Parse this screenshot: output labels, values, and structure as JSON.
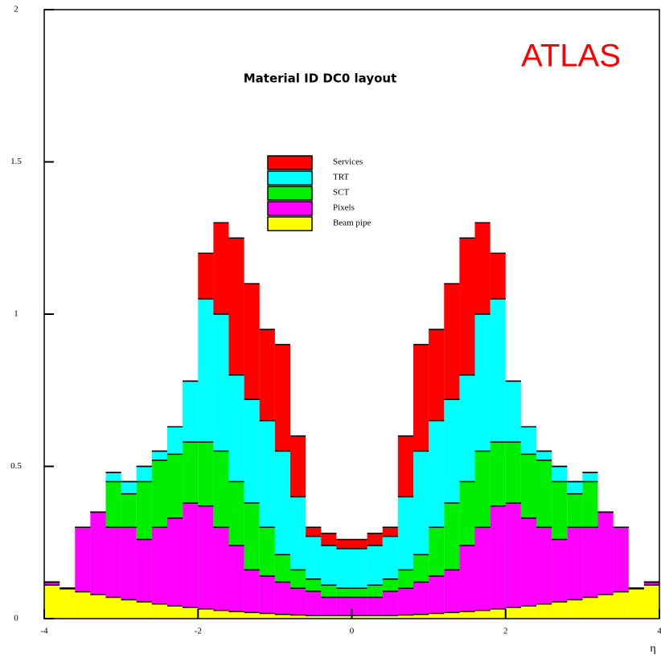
{
  "chart_data": {
    "type": "stacked_histogram",
    "title": "Material ID DC0 layout",
    "annotation": "ATLAS",
    "xlabel": "η",
    "bins": [
      -4,
      -3.8,
      -3.6,
      -3.4,
      -3.2,
      -3,
      -2.8,
      -2.6,
      -2.4,
      -2.2,
      -2,
      -1.8,
      -1.6,
      -1.4,
      -1.2,
      -1,
      -0.8,
      -0.6,
      -0.4,
      -0.2,
      0,
      0.2,
      0.4,
      0.6,
      0.8,
      1,
      1.2,
      1.4,
      1.6,
      1.8,
      2,
      2.2,
      2.4,
      2.6,
      2.8,
      3,
      3.2,
      3.4,
      3.6,
      3.8,
      4
    ],
    "series": [
      {
        "name": "Beam pipe",
        "color": "#ffff00",
        "values": [
          0.11,
          0.098,
          0.088,
          0.079,
          0.07,
          0.062,
          0.055,
          0.048,
          0.042,
          0.037,
          0.032,
          0.027,
          0.023,
          0.02,
          0.017,
          0.014,
          0.012,
          0.01,
          0.01,
          0.01,
          0.01,
          0.01,
          0.01,
          0.012,
          0.014,
          0.017,
          0.02,
          0.023,
          0.027,
          0.032,
          0.037,
          0.042,
          0.048,
          0.055,
          0.062,
          0.07,
          0.079,
          0.088,
          0.098,
          0.11
        ]
      },
      {
        "name": "Pixels",
        "color": "#ff00ff",
        "values": [
          0.01,
          0.002,
          0.212,
          0.271,
          0.23,
          0.238,
          0.205,
          0.252,
          0.288,
          0.343,
          0.338,
          0.273,
          0.217,
          0.14,
          0.123,
          0.106,
          0.088,
          0.08,
          0.06,
          0.06,
          0.06,
          0.06,
          0.08,
          0.088,
          0.106,
          0.123,
          0.14,
          0.217,
          0.273,
          0.338,
          0.343,
          0.288,
          0.252,
          0.205,
          0.238,
          0.23,
          0.271,
          0.212,
          0.002,
          0.01
        ]
      },
      {
        "name": "SCT",
        "color": "#00ee00",
        "values": [
          0,
          0,
          0,
          0,
          0.15,
          0.11,
          0.19,
          0.22,
          0.21,
          0.2,
          0.21,
          0.25,
          0.21,
          0.22,
          0.16,
          0.09,
          0.06,
          0.04,
          0.04,
          0.03,
          0.03,
          0.04,
          0.04,
          0.06,
          0.09,
          0.16,
          0.22,
          0.21,
          0.25,
          0.21,
          0.2,
          0.21,
          0.22,
          0.19,
          0.11,
          0.15,
          0,
          0,
          0,
          0
        ]
      },
      {
        "name": "TRT",
        "color": "#00ffff",
        "values": [
          0,
          0,
          0,
          0,
          0.03,
          0.04,
          0.05,
          0.03,
          0.09,
          0.2,
          0.47,
          0.45,
          0.35,
          0.34,
          0.35,
          0.34,
          0.24,
          0.14,
          0.13,
          0.13,
          0.13,
          0.13,
          0.14,
          0.24,
          0.34,
          0.35,
          0.34,
          0.35,
          0.45,
          0.47,
          0.2,
          0.09,
          0.03,
          0.05,
          0.04,
          0.03,
          0,
          0,
          0,
          0
        ]
      },
      {
        "name": "Services",
        "color": "#ff0000",
        "values": [
          0,
          0,
          0,
          0,
          0,
          0,
          0,
          0,
          0,
          0,
          0.15,
          0.3,
          0.45,
          0.38,
          0.3,
          0.35,
          0.2,
          0.03,
          0.04,
          0.03,
          0.03,
          0.04,
          0.03,
          0.2,
          0.35,
          0.3,
          0.38,
          0.45,
          0.3,
          0.15,
          0,
          0,
          0,
          0,
          0,
          0,
          0,
          0,
          0,
          0
        ]
      }
    ],
    "xlim": [
      -4,
      4
    ],
    "xticks": [
      -4,
      -2,
      0,
      2,
      4
    ],
    "ylim": [
      0,
      2
    ],
    "yticks": [
      0,
      0.5,
      1,
      1.5,
      2
    ]
  }
}
